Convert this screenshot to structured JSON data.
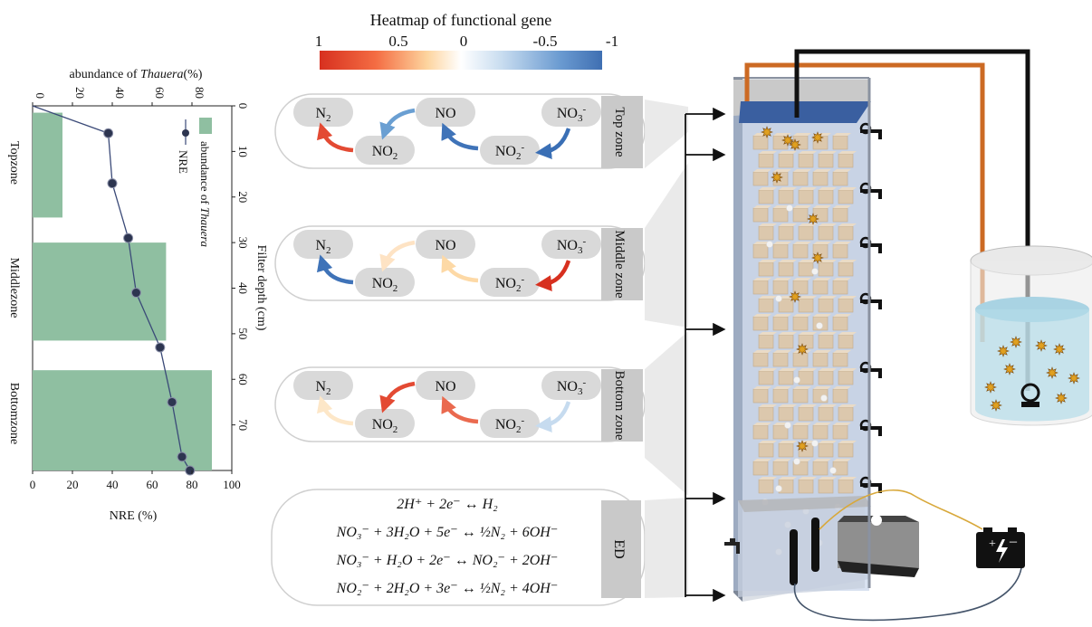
{
  "heatmap": {
    "title": "Heatmap of functional gene",
    "ticks": [
      "1",
      "0.5",
      "0",
      "-0.5",
      "-1"
    ],
    "colors": [
      "#d7301f",
      "#f46d43",
      "#fdae61",
      "#fee8c8",
      "#ffffff",
      "#c6dbef",
      "#6b9bd1",
      "#3f6fb2"
    ]
  },
  "zones": [
    {
      "label": "Top zone",
      "nodes": {
        "n2": "N",
        "no": "NO",
        "no3": "NO",
        "no2": "NO",
        "no2m": "NO"
      },
      "edge_colors": {
        "no3_no2m": "#3a6fb5",
        "no2m_no": "#3f73b8",
        "no_no2": "#6a9fd2",
        "no2_n2": "#e34a33"
      }
    },
    {
      "label": "Middle zone",
      "nodes": {
        "n2": "N",
        "no": "NO",
        "no3": "NO",
        "no2": "NO",
        "no2m": "NO"
      },
      "edge_colors": {
        "no3_no2m": "#d7301f",
        "no2m_no": "#fdd9a6",
        "no_no2": "#fee3c4",
        "no2_n2": "#3f73b8"
      }
    },
    {
      "label": "Bottom zone",
      "nodes": {
        "n2": "N",
        "no": "NO",
        "no3": "NO",
        "no2": "NO",
        "no2m": "NO"
      },
      "edge_colors": {
        "no3_no2m": "#c6dbef",
        "no2m_no": "#ea6a4f",
        "no_no2": "#e34a33",
        "no2_n2": "#fde7c8"
      }
    },
    {
      "label": "ED",
      "equations": [
        "2H⁺ + 2e⁻ ↔ H₂",
        "NO₃⁻ + 3H₂O + 5e⁻ ↔ ½N₂ + 6OH⁻",
        "NO₃⁻ + H₂O + 2e⁻ ↔ NO₂⁻ + 2OH⁻",
        "NO₂⁻ + 2H₂O + 3e⁻ ↔ ½N₂ + 4OH⁻"
      ]
    }
  ],
  "chart_data": {
    "type": "bar",
    "orientation": "rotated-90",
    "bar_categories": [
      "Topzone",
      "Middlezone",
      "Bottomzone"
    ],
    "bar_values": [
      15,
      67,
      90
    ],
    "bar_series_name": "abundance of Thauera",
    "line_series_name": "NRE",
    "line_points": [
      {
        "depth": 0,
        "nre": 0
      },
      {
        "depth": 6,
        "nre": 38
      },
      {
        "depth": 17,
        "nre": 40
      },
      {
        "depth": 29,
        "nre": 48
      },
      {
        "depth": 41,
        "nre": 52
      },
      {
        "depth": 53,
        "nre": 64
      },
      {
        "depth": 65,
        "nre": 70
      },
      {
        "depth": 77,
        "nre": 75
      },
      {
        "depth": 80,
        "nre": 79
      }
    ],
    "depth_axis": {
      "label": "Filter depth (cm)",
      "ticks": [
        0,
        10,
        20,
        30,
        40,
        50,
        60,
        70
      ],
      "range": [
        0,
        80
      ]
    },
    "nre_axis": {
      "label": "NRE (%)",
      "ticks": [
        0,
        20,
        40,
        60,
        80,
        100
      ],
      "range": [
        0,
        100
      ]
    },
    "abundance_axis": {
      "label_prefix": "abundance of ",
      "label_italic": "Thauera",
      "label_suffix": "(%)",
      "ticks": [
        0,
        20,
        40,
        60,
        80
      ],
      "range": [
        0,
        100
      ]
    },
    "legend_placement": "top-right",
    "colors": {
      "bar": "#8fbfa1",
      "line": "#3b4a78",
      "marker": "#2d3550"
    }
  },
  "apparatus": {
    "colors": {
      "water": "#b9c9e4",
      "cube": "#dcc8ad",
      "lid": "#3a5fa0",
      "orange_wire": "#cc6a23",
      "black_wire": "#111111",
      "yellow_wire": "#d8a83a",
      "bacteria": "#e0a020"
    }
  }
}
